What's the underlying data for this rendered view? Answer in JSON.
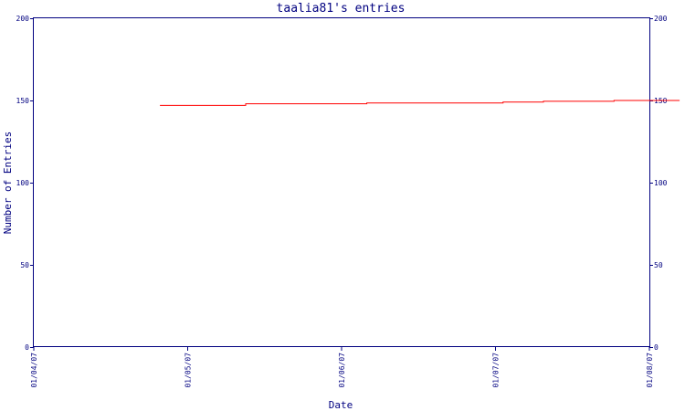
{
  "chart_data": {
    "type": "line",
    "title": "taalia81's entries",
    "xlabel": "Date",
    "ylabel": "Number of Entries",
    "x_ticks": [
      "01/04/07",
      "01/05/07",
      "01/06/07",
      "01/07/07",
      "01/08/07"
    ],
    "y_ticks": [
      "0",
      "50",
      "100",
      "150",
      "200"
    ],
    "ylim": [
      0,
      200
    ],
    "xlim": [
      "2007-04-01",
      "2007-08-01"
    ],
    "grid": false,
    "series": [
      {
        "points": [
          {
            "x": "2007-04-26",
            "y": 147
          },
          {
            "x": "2007-05-13",
            "y": 147
          },
          {
            "x": "2007-05-13",
            "y": 148
          },
          {
            "x": "2007-06-06",
            "y": 148
          },
          {
            "x": "2007-06-06",
            "y": 148.5
          },
          {
            "x": "2007-07-03",
            "y": 148.5
          },
          {
            "x": "2007-07-03",
            "y": 149
          },
          {
            "x": "2007-07-11",
            "y": 149
          },
          {
            "x": "2007-07-11",
            "y": 149.5
          },
          {
            "x": "2007-07-25",
            "y": 149.5
          },
          {
            "x": "2007-07-25",
            "y": 150
          },
          {
            "x": "2007-08-07",
            "y": 150
          }
        ]
      }
    ],
    "colors": {
      "axis": "#000080",
      "line": "#ff0000",
      "text": "#000080"
    }
  }
}
